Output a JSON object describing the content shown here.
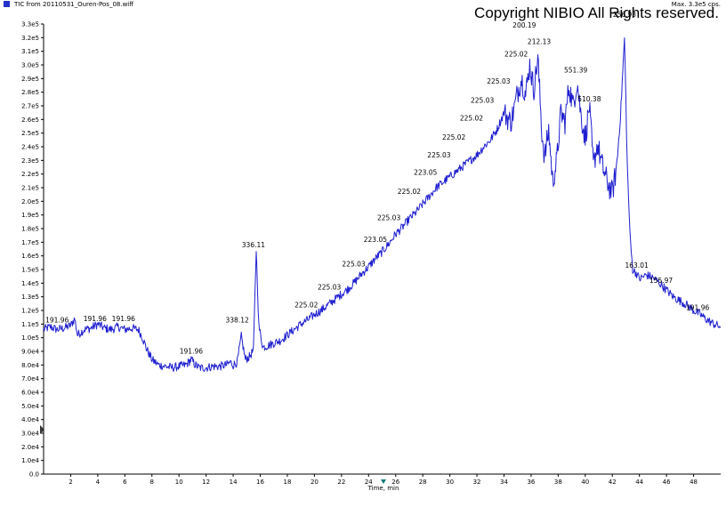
{
  "header": {
    "title": "TIC from 20110531_Ouren-Pos_08.wiff",
    "max_label": "Max. 3.3e5 cps.",
    "copyright": "Copyright NIBIO All Rights reserved."
  },
  "chart_data": {
    "type": "line",
    "title": "TIC from 20110531_Ouren-Pos_08.wiff",
    "xlabel": "Time, min",
    "ylabel": "",
    "xlim": [
      0,
      50
    ],
    "ylim": [
      0,
      330000
    ],
    "x_ticks": [
      2,
      4,
      6,
      8,
      10,
      12,
      14,
      16,
      18,
      20,
      22,
      24,
      26,
      28,
      30,
      32,
      34,
      36,
      38,
      40,
      42,
      44,
      46,
      48
    ],
    "x_tick_labels": [
      "2",
      "4",
      "6",
      "8",
      "10",
      "12",
      "14",
      "16",
      "18",
      "20",
      "22",
      "24",
      "26",
      "28",
      "30",
      "32",
      "34",
      "36",
      "38",
      "40",
      "42",
      "44",
      "46",
      "48"
    ],
    "y_ticks": [
      0,
      10000,
      20000,
      30000,
      40000,
      50000,
      60000,
      70000,
      80000,
      90000,
      100000,
      110000,
      120000,
      130000,
      140000,
      150000,
      160000,
      170000,
      180000,
      190000,
      200000,
      210000,
      220000,
      230000,
      240000,
      250000,
      260000,
      270000,
      280000,
      290000,
      300000,
      310000,
      320000,
      330000
    ],
    "y_tick_labels": [
      "0.0",
      "1.0e4",
      "2.0e4",
      "3.0e4",
      "4.0e4",
      "5.0e4",
      "6.0e4",
      "7.0e4",
      "8.0e4",
      "9.0e4",
      "1.0e5",
      "1.1e5",
      "1.2e5",
      "1.3e5",
      "1.4e5",
      "1.5e5",
      "1.6e5",
      "1.7e5",
      "1.8e5",
      "1.9e5",
      "2.0e5",
      "2.1e5",
      "2.2e5",
      "2.3e5",
      "2.4e5",
      "2.5e5",
      "2.6e5",
      "2.7e5",
      "2.8e5",
      "2.9e5",
      "3.0e5",
      "3.1e5",
      "3.2e5",
      "3.3e5"
    ],
    "series": [
      {
        "color": "#1f1fd0",
        "x": [
          0.0,
          0.5,
          1.0,
          1.5,
          2.0,
          2.3,
          2.5,
          3.0,
          3.5,
          4.0,
          4.5,
          5.0,
          5.5,
          6.0,
          6.5,
          7.0,
          7.3,
          7.6,
          8.0,
          8.5,
          9.0,
          9.5,
          10.0,
          10.5,
          10.9,
          11.2,
          11.5,
          12.0,
          12.5,
          13.0,
          13.5,
          13.8,
          14.0,
          14.3,
          14.6,
          14.9,
          15.2,
          15.5,
          15.7,
          15.9,
          16.2,
          16.5,
          17.0,
          17.5,
          18.0,
          18.5,
          19.0,
          19.5,
          20.0,
          20.5,
          21.0,
          21.5,
          22.0,
          22.5,
          23.0,
          23.5,
          24.0,
          24.5,
          25.0,
          25.5,
          26.0,
          26.5,
          27.0,
          27.5,
          28.0,
          28.5,
          29.0,
          29.5,
          30.0,
          30.5,
          31.0,
          31.5,
          32.0,
          32.5,
          33.0,
          33.5,
          34.0,
          34.5,
          34.8,
          35.0,
          35.3,
          35.6,
          35.9,
          36.2,
          36.5,
          36.8,
          37.0,
          37.3,
          37.6,
          37.9,
          38.2,
          38.5,
          38.8,
          39.1,
          39.4,
          39.7,
          40.0,
          40.3,
          40.6,
          40.9,
          41.2,
          41.5,
          41.8,
          42.0,
          42.3,
          42.6,
          42.9,
          43.1,
          43.3,
          43.5,
          43.8,
          44.0,
          44.5,
          45.0,
          45.5,
          46.0,
          46.5,
          47.0,
          47.5,
          48.0,
          48.5,
          49.0,
          49.5,
          50.0
        ],
        "y": [
          106000,
          108000,
          106000,
          107000,
          109000,
          114000,
          102000,
          106000,
          107000,
          110000,
          107000,
          106000,
          108000,
          106000,
          107000,
          106000,
          100000,
          92000,
          84000,
          80000,
          79000,
          78000,
          79000,
          80000,
          84000,
          80000,
          78000,
          78000,
          79000,
          79000,
          80000,
          82000,
          80000,
          82000,
          101000,
          84000,
          86000,
          91000,
          165000,
          108000,
          93000,
          94000,
          96000,
          98000,
          102000,
          106000,
          110000,
          113000,
          117000,
          120000,
          124000,
          128000,
          132000,
          136000,
          141000,
          147000,
          152000,
          158000,
          163000,
          169000,
          176000,
          181000,
          187000,
          192000,
          198000,
          204000,
          210000,
          214000,
          218000,
          222000,
          226000,
          230000,
          234000,
          240000,
          245000,
          253000,
          265000,
          258000,
          270000,
          280000,
          290000,
          278000,
          300000,
          282000,
          305000,
          250000,
          232000,
          252000,
          214000,
          230000,
          265000,
          258000,
          285000,
          270000,
          288000,
          262000,
          246000,
          270000,
          226000,
          242000,
          228000,
          218000,
          210000,
          206000,
          224000,
          262000,
          320000,
          228000,
          176000,
          150000,
          147000,
          143000,
          146000,
          144000,
          140000,
          135000,
          130000,
          127000,
          124000,
          120000,
          117000,
          113000,
          110000,
          108000
        ]
      }
    ],
    "annotations": [
      {
        "label": "191.96",
        "x": 1.0,
        "y": 110000
      },
      {
        "label": "191.96",
        "x": 3.8,
        "y": 111000
      },
      {
        "label": "191.96",
        "x": 5.9,
        "y": 111000
      },
      {
        "label": "191.96",
        "x": 10.9,
        "y": 87000
      },
      {
        "label": "338.12",
        "x": 14.3,
        "y": 110000
      },
      {
        "label": "336.11",
        "x": 15.5,
        "y": 165000
      },
      {
        "label": "225.02",
        "x": 19.4,
        "y": 121000
      },
      {
        "label": "225.03",
        "x": 21.1,
        "y": 134000
      },
      {
        "label": "225.03",
        "x": 22.9,
        "y": 151000
      },
      {
        "label": "223.05",
        "x": 24.5,
        "y": 169000
      },
      {
        "label": "225.03",
        "x": 25.5,
        "y": 185000
      },
      {
        "label": "225.02",
        "x": 27.0,
        "y": 204000
      },
      {
        "label": "223.05",
        "x": 28.2,
        "y": 218000
      },
      {
        "label": "225.03",
        "x": 29.2,
        "y": 231000
      },
      {
        "label": "225.02",
        "x": 30.3,
        "y": 244000
      },
      {
        "label": "225.02",
        "x": 31.6,
        "y": 258000
      },
      {
        "label": "225.03",
        "x": 32.4,
        "y": 271000
      },
      {
        "label": "225.03",
        "x": 33.6,
        "y": 285000
      },
      {
        "label": "225.02",
        "x": 34.9,
        "y": 305000
      },
      {
        "label": "200.19",
        "x": 35.5,
        "y": 326000
      },
      {
        "label": "212.13",
        "x": 36.6,
        "y": 314000
      },
      {
        "label": "551.39",
        "x": 39.3,
        "y": 293000
      },
      {
        "label": "510.38",
        "x": 40.3,
        "y": 272000
      },
      {
        "label": "256.93",
        "x": 42.9,
        "y": 334000
      },
      {
        "label": "163.01",
        "x": 43.8,
        "y": 150000
      },
      {
        "label": "155.97",
        "x": 45.6,
        "y": 139000
      },
      {
        "label": "191.96",
        "x": 48.3,
        "y": 119000
      }
    ]
  }
}
